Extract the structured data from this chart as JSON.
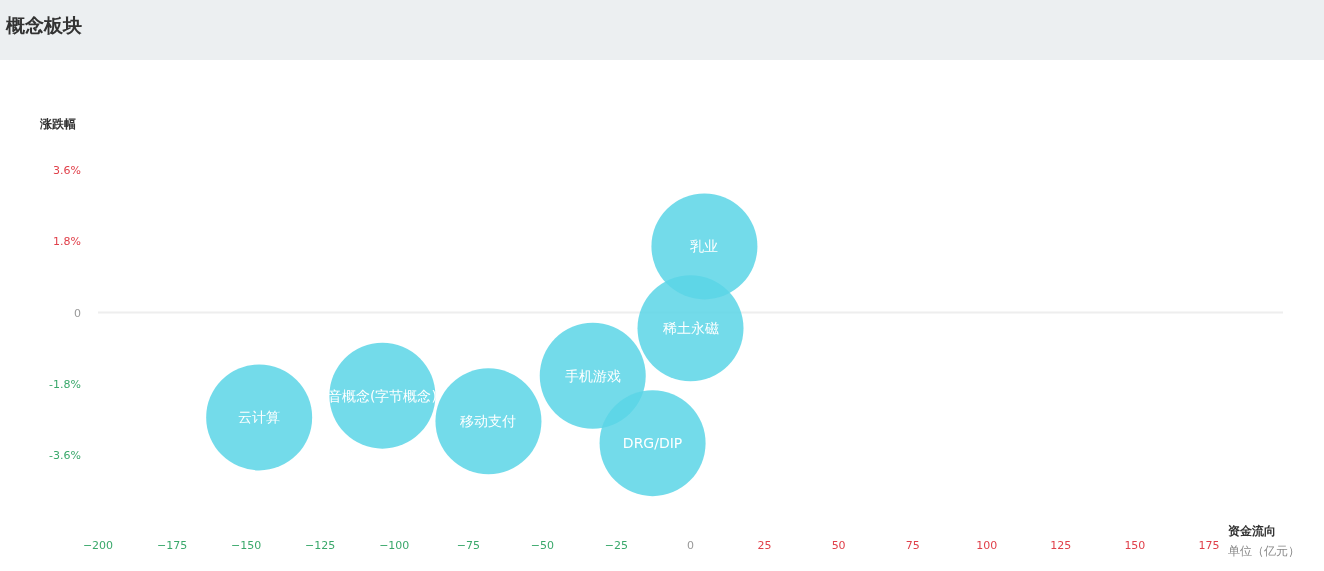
{
  "chart_data": {
    "type": "bubble",
    "title": "概念板块",
    "ylabel": "涨跌幅",
    "xlabel": "资金流向",
    "annotations": [
      "单位（亿元）"
    ],
    "xlim": [
      -200,
      200
    ],
    "xticks": [
      -200,
      -175,
      -150,
      -125,
      -100,
      -75,
      -50,
      -25,
      0,
      25,
      50,
      75,
      100,
      125,
      150,
      175
    ],
    "ylim": [
      -3.6,
      3.6
    ],
    "ref_lines": [
      {
        "axis": "y",
        "value": 0,
        "color": "#eeeeee"
      }
    ],
    "yticks": [
      {
        "value": 3.6,
        "label": "3.6%"
      },
      {
        "value": 1.8,
        "label": "1.8%"
      },
      0,
      {
        "value": -1.8,
        "label": "-1.8%"
      },
      {
        "value": -3.6,
        "label": "-3.6%"
      }
    ],
    "series": [
      {
        "name": "云计算",
        "color": "#5ad5e6",
        "x": [
          -145.6
        ],
        "values": [
          -2.65
        ],
        "sizes": [
          1
        ]
      },
      {
        "name": "音概念(字节概念)",
        "color": "#5ad5e6",
        "x": [
          -104
        ],
        "values": [
          -2.1
        ],
        "sizes": [
          1
        ]
      },
      {
        "name": "移动支付",
        "color": "#5ad5e6",
        "x": [
          -68.2
        ],
        "values": [
          -2.75
        ],
        "sizes": [
          1
        ]
      },
      {
        "name": "手机游戏",
        "color": "#5ad5e6",
        "x": [
          -33
        ],
        "values": [
          -1.6
        ],
        "sizes": [
          1
        ]
      },
      {
        "name": "DRG/DIP",
        "color": "#5ad5e6",
        "x": [
          -12.8
        ],
        "values": [
          -3.3
        ],
        "sizes": [
          1
        ]
      },
      {
        "name": "稀土永磁",
        "color": "#5ad5e6",
        "x": [
          0
        ],
        "values": [
          -0.4
        ],
        "sizes": [
          1
        ]
      },
      {
        "name": "乳业",
        "color": "#5ad5e6",
        "x": [
          4.7
        ],
        "values": [
          1.67
        ],
        "sizes": [
          1
        ]
      }
    ]
  }
}
